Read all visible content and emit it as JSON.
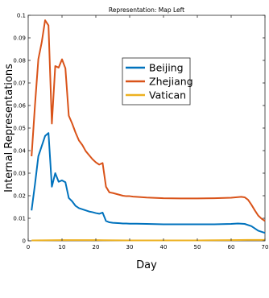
{
  "chart_data": {
    "type": "line",
    "title": "Representation: Map Left",
    "xlabel": "Day",
    "ylabel": "Internal Representations",
    "xlim": [
      0,
      70
    ],
    "ylim": [
      0,
      0.1
    ],
    "x_ticks": [
      "0",
      "10",
      "20",
      "30",
      "40",
      "50",
      "60",
      "70"
    ],
    "y_ticks": [
      "0",
      "0.01",
      "0.02",
      "0.03",
      "0.04",
      "0.05",
      "0.06",
      "0.07",
      "0.08",
      "0.09",
      "0.1"
    ],
    "grid": false,
    "legend_position": "upper-center",
    "series": [
      {
        "name": "Beijing",
        "color": "#0072BD",
        "points": [
          [
            1,
            0.0135
          ],
          [
            2,
            0.025
          ],
          [
            3,
            0.0375
          ],
          [
            4,
            0.042
          ],
          [
            5,
            0.0465
          ],
          [
            6,
            0.0478
          ],
          [
            7,
            0.024
          ],
          [
            8,
            0.03
          ],
          [
            9,
            0.0262
          ],
          [
            10,
            0.0268
          ],
          [
            11,
            0.026
          ],
          [
            12,
            0.019
          ],
          [
            13,
            0.0175
          ],
          [
            14,
            0.0155
          ],
          [
            15,
            0.0145
          ],
          [
            16,
            0.014
          ],
          [
            17,
            0.0135
          ],
          [
            18,
            0.013
          ],
          [
            19,
            0.0127
          ],
          [
            20,
            0.0123
          ],
          [
            21,
            0.012
          ],
          [
            22,
            0.0125
          ],
          [
            23,
            0.0088
          ],
          [
            24,
            0.0082
          ],
          [
            25,
            0.008
          ],
          [
            26,
            0.0079
          ],
          [
            27,
            0.0078
          ],
          [
            28,
            0.0077
          ],
          [
            29,
            0.0077
          ],
          [
            30,
            0.0076
          ],
          [
            31,
            0.0076
          ],
          [
            32,
            0.0076
          ],
          [
            35,
            0.0075
          ],
          [
            40,
            0.0073
          ],
          [
            45,
            0.0073
          ],
          [
            50,
            0.0073
          ],
          [
            55,
            0.0073
          ],
          [
            60,
            0.0075
          ],
          [
            62,
            0.0077
          ],
          [
            64,
            0.0075
          ],
          [
            66,
            0.0065
          ],
          [
            68,
            0.0045
          ],
          [
            69,
            0.004
          ],
          [
            70,
            0.0035
          ]
        ]
      },
      {
        "name": "Zhejiang",
        "color": "#D95319",
        "points": [
          [
            1,
            0.0375
          ],
          [
            2,
            0.06
          ],
          [
            3,
            0.0805
          ],
          [
            4,
            0.088
          ],
          [
            5,
            0.0978
          ],
          [
            6,
            0.0955
          ],
          [
            7,
            0.052
          ],
          [
            8,
            0.0775
          ],
          [
            9,
            0.0768
          ],
          [
            10,
            0.0805
          ],
          [
            11,
            0.0765
          ],
          [
            12,
            0.0555
          ],
          [
            13,
            0.052
          ],
          [
            14,
            0.048
          ],
          [
            15,
            0.0445
          ],
          [
            16,
            0.0425
          ],
          [
            17,
            0.0398
          ],
          [
            18,
            0.038
          ],
          [
            19,
            0.0362
          ],
          [
            20,
            0.0348
          ],
          [
            21,
            0.0338
          ],
          [
            22,
            0.0345
          ],
          [
            23,
            0.024
          ],
          [
            24,
            0.0215
          ],
          [
            25,
            0.0212
          ],
          [
            26,
            0.0208
          ],
          [
            27,
            0.0204
          ],
          [
            28,
            0.02
          ],
          [
            29,
            0.0198
          ],
          [
            30,
            0.0198
          ],
          [
            31,
            0.0196
          ],
          [
            32,
            0.0195
          ],
          [
            35,
            0.0192
          ],
          [
            40,
            0.0189
          ],
          [
            45,
            0.0188
          ],
          [
            50,
            0.0188
          ],
          [
            55,
            0.0189
          ],
          [
            60,
            0.0191
          ],
          [
            63,
            0.0195
          ],
          [
            64,
            0.0193
          ],
          [
            65,
            0.0182
          ],
          [
            66,
            0.016
          ],
          [
            67,
            0.0135
          ],
          [
            68,
            0.0112
          ],
          [
            69,
            0.0098
          ],
          [
            70,
            0.0088
          ]
        ]
      },
      {
        "name": "Vatican",
        "color": "#EDB120",
        "points": [
          [
            1,
            0.0002
          ],
          [
            10,
            0.0003
          ],
          [
            20,
            0.0003
          ],
          [
            30,
            0.0002
          ],
          [
            40,
            0.0002
          ],
          [
            50,
            0.0002
          ],
          [
            60,
            0.0003
          ],
          [
            65,
            0.0004
          ],
          [
            70,
            0.0004
          ]
        ]
      }
    ]
  }
}
